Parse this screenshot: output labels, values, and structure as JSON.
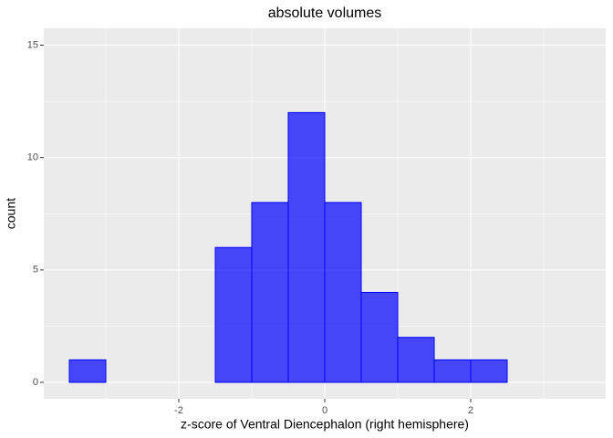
{
  "chart_data": {
    "type": "histogram",
    "title": "absolute volumes",
    "x_label": "z-score of Ventral Diencephalon (right hemisphere)",
    "y_label": "count",
    "bins": [
      -3.5,
      -3,
      -2.5,
      -2,
      -1.5,
      -1,
      -0.5,
      0,
      0.5,
      1,
      1.5,
      2,
      2.5,
      3,
      3.5
    ],
    "counts": [
      1,
      0,
      0,
      0,
      6,
      8,
      12,
      8,
      4,
      2,
      1,
      1,
      0,
      0
    ],
    "color": "#0000ff",
    "xlim": [
      -3.85,
      3.85
    ],
    "xticks": [
      -2,
      0,
      2
    ],
    "ylim": [
      -0.73,
      15.75
    ],
    "yticks": [
      0,
      5,
      10,
      15
    ],
    "grid": true
  }
}
